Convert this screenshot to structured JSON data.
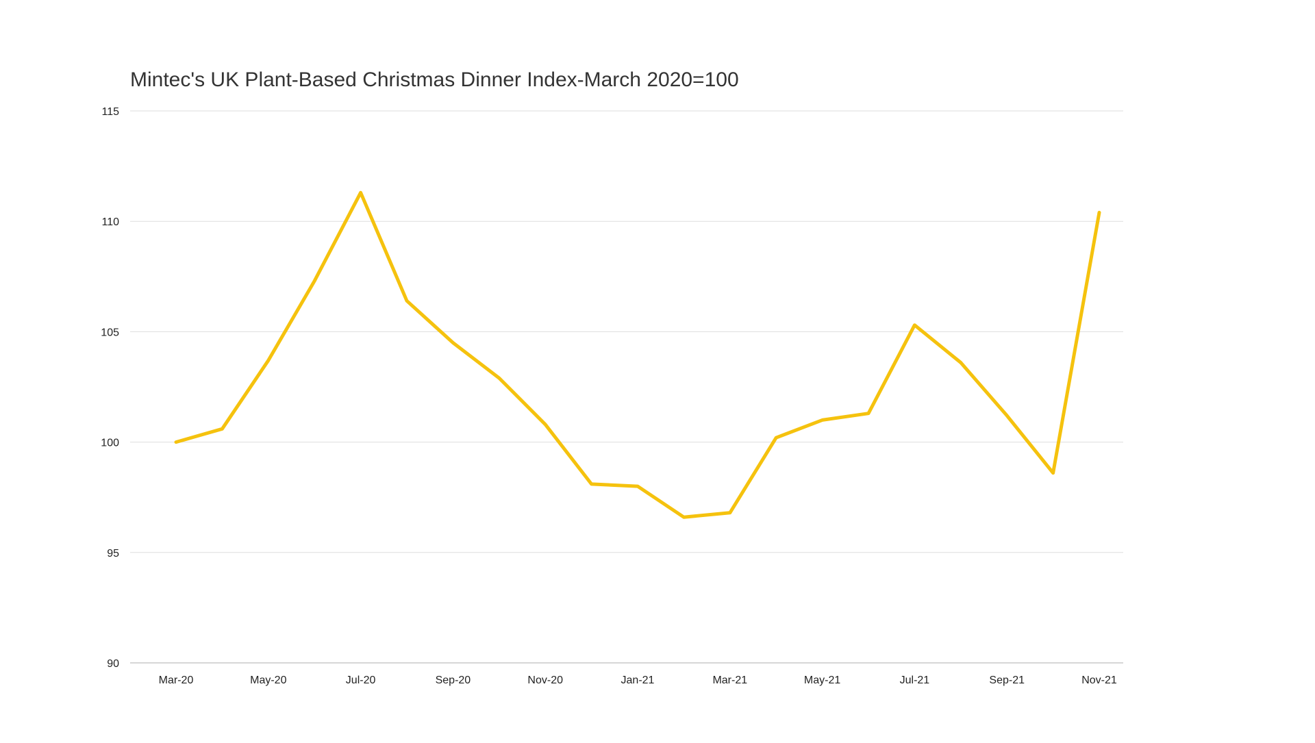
{
  "chart_data": {
    "type": "line",
    "title": "Mintec's UK Plant-Based Christmas Dinner Index-March 2020=100",
    "xlabel": "",
    "ylabel": "",
    "ylim": [
      90,
      115
    ],
    "yticks": [
      90,
      95,
      100,
      105,
      110,
      115
    ],
    "grid": true,
    "legend": "none",
    "x": [
      "Mar-20",
      "Apr-20",
      "May-20",
      "Jun-20",
      "Jul-20",
      "Aug-20",
      "Sep-20",
      "Oct-20",
      "Nov-20",
      "Dec-20",
      "Jan-21",
      "Feb-21",
      "Mar-21",
      "Apr-21",
      "May-21",
      "Jun-21",
      "Jul-21",
      "Aug-21",
      "Sep-21",
      "Oct-21",
      "Nov-21"
    ],
    "xtick_labels": [
      "Mar-20",
      "May-20",
      "Jul-20",
      "Sep-20",
      "Nov-20",
      "Jan-21",
      "Mar-21",
      "May-21",
      "Jul-21",
      "Sep-21",
      "Nov-21"
    ],
    "series": [
      {
        "values": [
          100.0,
          100.6,
          103.7,
          107.3,
          111.3,
          106.4,
          104.5,
          102.9,
          100.8,
          98.1,
          98.0,
          96.6,
          96.8,
          100.2,
          101.0,
          101.3,
          105.3,
          103.6,
          101.2,
          98.6,
          110.4
        ],
        "color": "#f5c20e"
      }
    ],
    "colors": {
      "grid": "#dddddd",
      "axis": "#c8c8c8",
      "tick_text": "#222222",
      "title_text": "#333333"
    }
  }
}
